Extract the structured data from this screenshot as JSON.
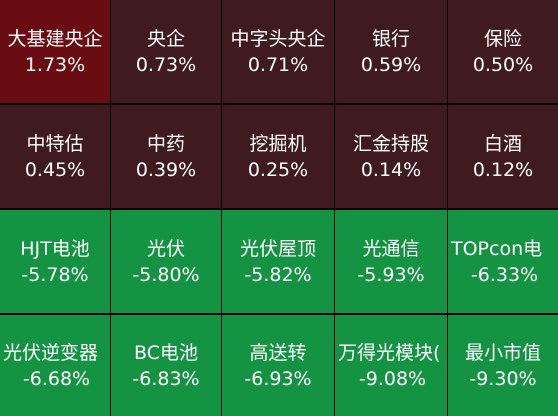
{
  "tiles": [
    {
      "name": "大基建央企",
      "pct": "1.73%",
      "color": "#6a0d12"
    },
    {
      "name": "央企",
      "pct": "0.73%",
      "color": "#3f1a1f"
    },
    {
      "name": "中字头央企",
      "pct": "0.71%",
      "color": "#3f1a1f"
    },
    {
      "name": "银行",
      "pct": "0.59%",
      "color": "#3f1a1f"
    },
    {
      "name": "保险",
      "pct": "0.50%",
      "color": "#3f1a1f"
    },
    {
      "name": "中特估",
      "pct": "0.45%",
      "color": "#3f1a1f"
    },
    {
      "name": "中药",
      "pct": "0.39%",
      "color": "#3f1a1f"
    },
    {
      "name": "挖掘机",
      "pct": "0.25%",
      "color": "#3f1a1f"
    },
    {
      "name": "汇金持股",
      "pct": "0.14%",
      "color": "#3f1a1f"
    },
    {
      "name": "白酒",
      "pct": "0.12%",
      "color": "#3f1a1f"
    },
    {
      "name": "HJT电池",
      "pct": "-5.78%",
      "color": "#149442"
    },
    {
      "name": "光伏",
      "pct": "-5.80%",
      "color": "#149442"
    },
    {
      "name": "光伏屋顶",
      "pct": "-5.82%",
      "color": "#149442"
    },
    {
      "name": "光通信",
      "pct": "-5.93%",
      "color": "#149442"
    },
    {
      "name": "TOPcon电",
      "pct": "-6.33%",
      "color": "#149442"
    },
    {
      "name": "光伏逆变器",
      "pct": "-6.68%",
      "color": "#149442"
    },
    {
      "name": "BC电池",
      "pct": "-6.83%",
      "color": "#149442"
    },
    {
      "name": "高送转",
      "pct": "-6.93%",
      "color": "#149442"
    },
    {
      "name": "万得光模块(",
      "pct": "-9.08%",
      "color": "#149442"
    },
    {
      "name": "最小市值",
      "pct": "-9.30%",
      "color": "#149442"
    }
  ]
}
